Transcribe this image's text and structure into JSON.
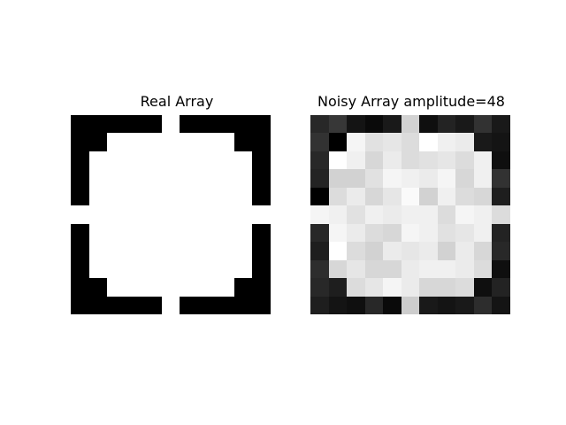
{
  "chart_data": [
    {
      "type": "heatmap",
      "title": "Real Array",
      "rows": 11,
      "cols": 11,
      "colormap": "gray",
      "values": [
        [
          0,
          0,
          0,
          0,
          0,
          255,
          0,
          0,
          0,
          0,
          0
        ],
        [
          0,
          0,
          255,
          255,
          255,
          255,
          255,
          255,
          255,
          0,
          0
        ],
        [
          0,
          255,
          255,
          255,
          255,
          255,
          255,
          255,
          255,
          255,
          0
        ],
        [
          0,
          255,
          255,
          255,
          255,
          255,
          255,
          255,
          255,
          255,
          0
        ],
        [
          0,
          255,
          255,
          255,
          255,
          255,
          255,
          255,
          255,
          255,
          0
        ],
        [
          255,
          255,
          255,
          255,
          255,
          255,
          255,
          255,
          255,
          255,
          255
        ],
        [
          0,
          255,
          255,
          255,
          255,
          255,
          255,
          255,
          255,
          255,
          0
        ],
        [
          0,
          255,
          255,
          255,
          255,
          255,
          255,
          255,
          255,
          255,
          0
        ],
        [
          0,
          255,
          255,
          255,
          255,
          255,
          255,
          255,
          255,
          255,
          0
        ],
        [
          0,
          0,
          255,
          255,
          255,
          255,
          255,
          255,
          255,
          0,
          0
        ],
        [
          0,
          0,
          0,
          0,
          0,
          255,
          0,
          0,
          0,
          0,
          0
        ]
      ]
    },
    {
      "type": "heatmap",
      "title": "Noisy Array amplitude=48",
      "rows": 11,
      "cols": 11,
      "colormap": "gray",
      "values": [
        [
          40,
          55,
          20,
          10,
          25,
          210,
          15,
          35,
          25,
          50,
          25
        ],
        [
          50,
          0,
          245,
          225,
          230,
          220,
          255,
          240,
          235,
          25,
          20
        ],
        [
          40,
          255,
          240,
          215,
          235,
          220,
          225,
          230,
          220,
          240,
          15
        ],
        [
          35,
          210,
          210,
          225,
          245,
          240,
          235,
          245,
          215,
          240,
          50
        ],
        [
          0,
          220,
          235,
          215,
          230,
          250,
          210,
          240,
          220,
          215,
          30
        ],
        [
          245,
          240,
          225,
          240,
          235,
          240,
          240,
          220,
          245,
          240,
          220
        ],
        [
          40,
          245,
          235,
          220,
          215,
          245,
          240,
          225,
          230,
          240,
          35
        ],
        [
          30,
          255,
          220,
          210,
          235,
          230,
          235,
          210,
          235,
          215,
          40
        ],
        [
          45,
          215,
          230,
          215,
          215,
          235,
          240,
          240,
          235,
          220,
          15
        ],
        [
          40,
          30,
          220,
          230,
          245,
          235,
          215,
          215,
          220,
          15,
          35
        ],
        [
          30,
          20,
          15,
          40,
          10,
          205,
          25,
          20,
          25,
          45,
          20
        ]
      ]
    }
  ]
}
